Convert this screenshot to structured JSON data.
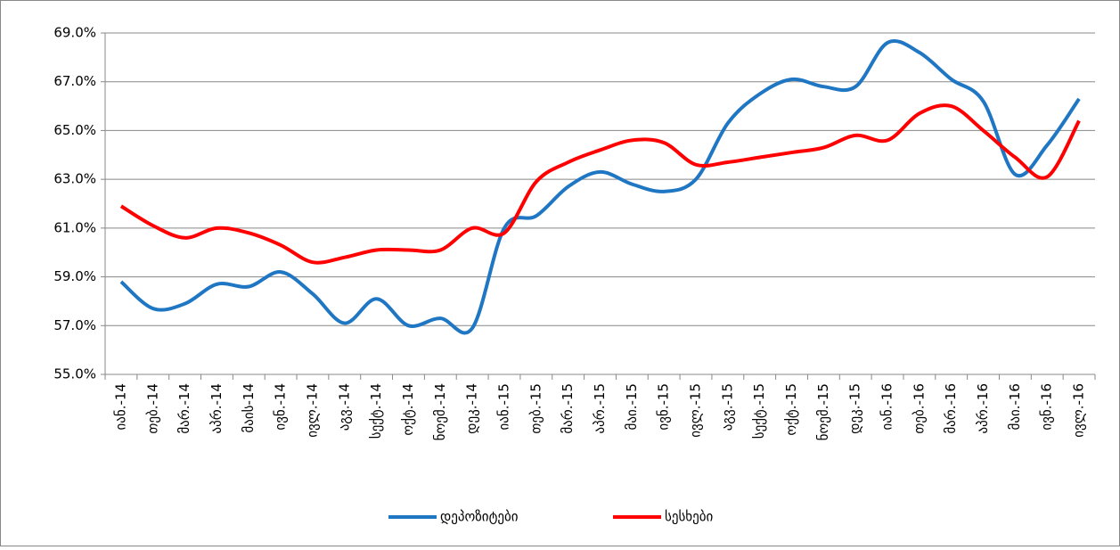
{
  "chart_data": {
    "type": "line",
    "categories": [
      "იან.-14",
      "თებ.-14",
      "მარ.-14",
      "აპრ.-14",
      "მაის-14",
      "ივნ.-14",
      "ივლ.-14",
      "აგვ.-14",
      "სექტ.-14",
      "ოქტ.-14",
      "ნოემ.-14",
      "დეკ.-14",
      "იან.-15",
      "თებ.-15",
      "მარ.-15",
      "აპრ.-15",
      "მაი.-15",
      "ივნ.-15",
      "ივლ.-15",
      "აგვ.-15",
      "სექტ.-15",
      "ოქტ.-15",
      "ნოემ.-15",
      "დეკ.-15",
      "იან.-16",
      "თებ.-16",
      "მარ.-16",
      "აპრ.-16",
      "მაი.-16",
      "ივნ.-16",
      "ივლ.-16"
    ],
    "series": [
      {
        "name": "დეპოზიტები",
        "color": "#1f77c4",
        "values": [
          58.8,
          57.7,
          57.9,
          58.7,
          58.6,
          59.2,
          58.3,
          57.1,
          58.1,
          57.0,
          57.3,
          56.9,
          61.0,
          61.5,
          62.7,
          63.3,
          62.8,
          62.5,
          63.0,
          65.3,
          66.5,
          67.1,
          66.8,
          66.8,
          68.6,
          68.2,
          67.1,
          66.2,
          63.2,
          64.4,
          66.3
        ]
      },
      {
        "name": "სესხები",
        "color": "#ff0000",
        "values": [
          61.9,
          61.1,
          60.6,
          61.0,
          60.8,
          60.3,
          59.6,
          59.8,
          60.1,
          60.1,
          60.1,
          61.0,
          60.8,
          62.9,
          63.7,
          64.2,
          64.6,
          64.5,
          63.6,
          63.7,
          63.9,
          64.1,
          64.3,
          64.8,
          64.6,
          65.7,
          66.0,
          65.0,
          63.9,
          63.1,
          65.4
        ]
      }
    ],
    "ylim": [
      55,
      69
    ],
    "yticks": [
      {
        "value": 55,
        "label": "55.0%"
      },
      {
        "value": 57,
        "label": "57.0%"
      },
      {
        "value": 59,
        "label": "59.0%"
      },
      {
        "value": 61,
        "label": "61.0%"
      },
      {
        "value": 63,
        "label": "63.0%"
      },
      {
        "value": 65,
        "label": "65.0%"
      },
      {
        "value": 67,
        "label": "67.0%"
      },
      {
        "value": 69,
        "label": "69.0%"
      }
    ],
    "grid": true,
    "legend": "bottom"
  }
}
